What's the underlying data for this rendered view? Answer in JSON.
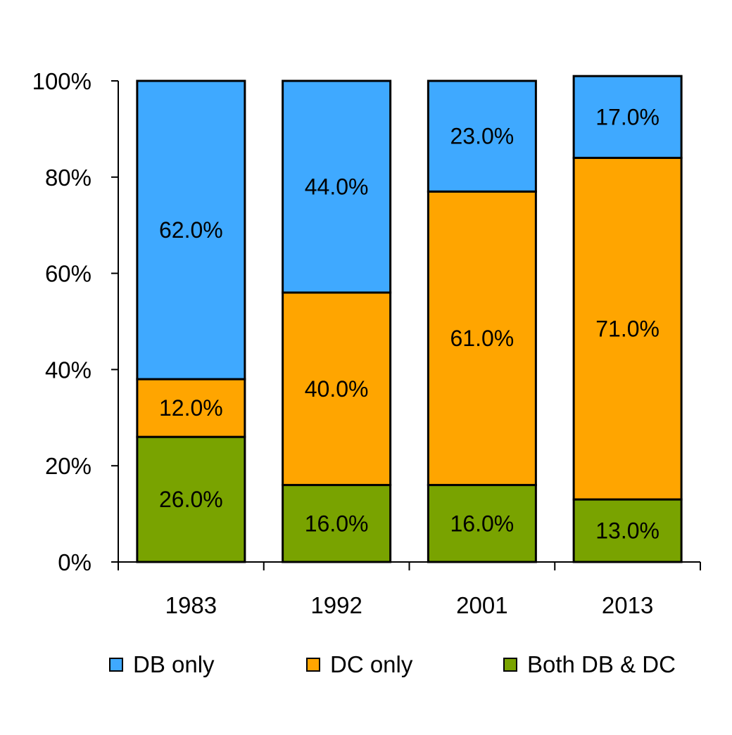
{
  "chart_data": {
    "type": "bar",
    "stacked": true,
    "categories": [
      "1983",
      "1992",
      "2001",
      "2013"
    ],
    "series": [
      {
        "name": "Both DB & DC",
        "color": "#79A300",
        "values": [
          26,
          16,
          16,
          13
        ],
        "labels": [
          "26.0%",
          "16.0%",
          "16.0%",
          "13.0%"
        ]
      },
      {
        "name": "DC only",
        "color": "#FFA500",
        "values": [
          12,
          40,
          61,
          71
        ],
        "labels": [
          "12.0%",
          "40.0%",
          "61.0%",
          "71.0%"
        ]
      },
      {
        "name": "DB only",
        "color": "#3FA9FF",
        "values": [
          62,
          44,
          23,
          17
        ],
        "labels": [
          "62.0%",
          "44.0%",
          "23.0%",
          "17.0%"
        ]
      }
    ],
    "ylim": [
      0,
      100
    ],
    "yticks": [
      "0%",
      "20%",
      "40%",
      "60%",
      "80%",
      "100%"
    ],
    "grid": false,
    "legend": {
      "placement": "bottom",
      "items": [
        {
          "label": "DB only",
          "color": "#3FA9FF"
        },
        {
          "label": "DC only",
          "color": "#FFA500"
        },
        {
          "label": "Both DB & DC",
          "color": "#79A300"
        }
      ]
    }
  }
}
